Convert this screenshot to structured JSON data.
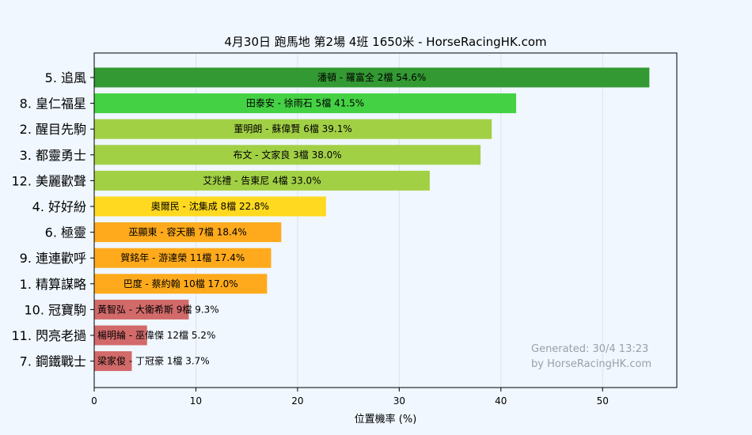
{
  "chart_data": {
    "type": "bar",
    "orientation": "horizontal",
    "title": "4月30日  跑馬地  第2場  4班  1650米 - HorseRacingHK.com",
    "xlabel": "位置機率 (%)",
    "ylabel": "",
    "xlim": [
      0,
      57.3
    ],
    "xticks": [
      "0",
      "10",
      "20",
      "30",
      "40",
      "50"
    ],
    "grid": true,
    "categories": [
      "5. 追風",
      "8. 皇仁福星",
      "2. 醒目先駒",
      "3. 都靈勇士",
      "12. 美麗歡聲",
      "4. 好好紛",
      "6. 極靈",
      "9. 連連歡呼",
      "1. 精算謀略",
      "10. 冠寶駒",
      "11. 閃亮老撾",
      "7. 鋼鐵戰士"
    ],
    "values": [
      54.6,
      41.5,
      39.1,
      38.0,
      33.0,
      22.8,
      18.4,
      17.4,
      17.0,
      9.3,
      5.2,
      3.7
    ],
    "bar_labels": [
      "潘頓 - 羅富全 2檔  54.6%",
      "田泰安 - 徐雨石 5檔  41.5%",
      "董明朗 - 蘇偉賢 6檔  39.1%",
      "布文 - 文家良 3檔  38.0%",
      "艾兆禮 - 告東尼 4檔  33.0%",
      "奧爾民 - 沈集成 8檔  22.8%",
      "巫顯東 - 容天鵬 7檔  18.4%",
      "賀銘年 - 游達榮 11檔  17.4%",
      "巴度 - 蔡約翰 10檔  17.0%",
      "黃智弘 - 大衛希斯 9檔  9.3%",
      "楊明綸 - 巫偉傑 12檔  5.2%",
      "梁家俊 - 丁冠豪 1檔  3.7%"
    ],
    "colors": [
      "#339933",
      "#44d244",
      "#a2d045",
      "#a2d045",
      "#a2d045",
      "#ffd91f",
      "#ffaa1c",
      "#ffaa1c",
      "#ffaa1c",
      "#d26a6a",
      "#d26a6a",
      "#d26a6a"
    ]
  },
  "footer": {
    "line1": "Generated: 30/4 13:23",
    "line2": "by HorseRacingHK.com"
  }
}
